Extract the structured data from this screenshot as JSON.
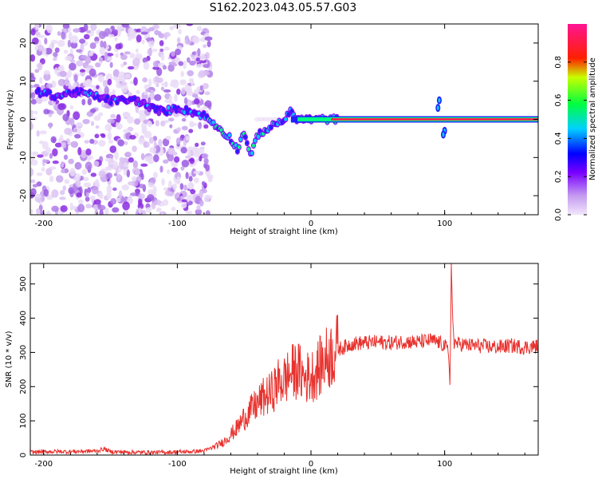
{
  "figure": {
    "title": "S162.2023.043.05.57.G03"
  },
  "chart_data": [
    {
      "type": "heatmap",
      "xlabel": "Height of straight line (km)",
      "ylabel": "Frequency (Hz)",
      "xlim": [
        -210,
        170
      ],
      "ylim": [
        -25,
        25
      ],
      "xticks": [
        -200,
        -100,
        0,
        100
      ],
      "yticks": [
        -20,
        -10,
        0,
        10,
        20
      ],
      "grid": false,
      "colorbar": {
        "label": "Normalized spectral amplitude",
        "range": [
          0,
          1
        ],
        "ticks": [
          0.0,
          0.2,
          0.4,
          0.6,
          0.8
        ],
        "colormap": [
          "#e6d2f5",
          "#8a2be2",
          "#2020ff",
          "#00c8ff",
          "#00ff80",
          "#ffff00",
          "#ff0000",
          "#ff1493"
        ]
      },
      "ridge": {
        "x": [
          -200,
          -190,
          -180,
          -170,
          -160,
          -150,
          -140,
          -130,
          -120,
          -110,
          -100,
          -90,
          -80,
          -70,
          -60,
          -55,
          -50,
          -45,
          -40,
          -35,
          -30,
          -25,
          -20,
          -15,
          -10,
          0,
          10,
          20,
          50,
          90,
          95,
          100,
          105,
          170
        ],
        "freq": [
          7,
          6,
          7,
          7,
          6,
          5,
          5,
          5,
          3,
          2,
          3,
          2,
          1,
          -2,
          -5,
          -8,
          -3,
          -10,
          -4,
          -3,
          -2,
          -1,
          0,
          2,
          0,
          0,
          0,
          0,
          0,
          0,
          3,
          -3,
          0,
          0
        ]
      }
    },
    {
      "type": "line",
      "xlabel": "Height of straight line (km)",
      "ylabel": "SNR (10 * v/v)",
      "xlim": [
        -210,
        170
      ],
      "ylim": [
        0,
        560
      ],
      "xticks": [
        -200,
        -100,
        0,
        100
      ],
      "yticks": [
        0,
        100,
        200,
        300,
        400,
        500
      ],
      "grid": false,
      "series": [
        {
          "color": "#e8322e",
          "x": [
            -210,
            -200,
            -180,
            -160,
            -155,
            -150,
            -130,
            -110,
            -90,
            -80,
            -75,
            -70,
            -65,
            -60,
            -55,
            -50,
            -45,
            -40,
            -35,
            -30,
            -25,
            -20,
            -15,
            -10,
            -5,
            0,
            5,
            10,
            15,
            20,
            25,
            30,
            40,
            50,
            60,
            70,
            80,
            90,
            95,
            100,
            103,
            104,
            105,
            106,
            107,
            110,
            120,
            130,
            140,
            150,
            160,
            170
          ],
          "y": [
            8,
            10,
            10,
            12,
            18,
            10,
            8,
            8,
            10,
            12,
            20,
            28,
            40,
            60,
            80,
            110,
            130,
            150,
            170,
            180,
            210,
            220,
            240,
            250,
            225,
            230,
            250,
            275,
            295,
            310,
            315,
            325,
            328,
            330,
            328,
            332,
            330,
            335,
            330,
            320,
            300,
            200,
            560,
            400,
            330,
            325,
            320,
            318,
            315,
            320,
            315,
            318
          ]
        }
      ]
    }
  ]
}
